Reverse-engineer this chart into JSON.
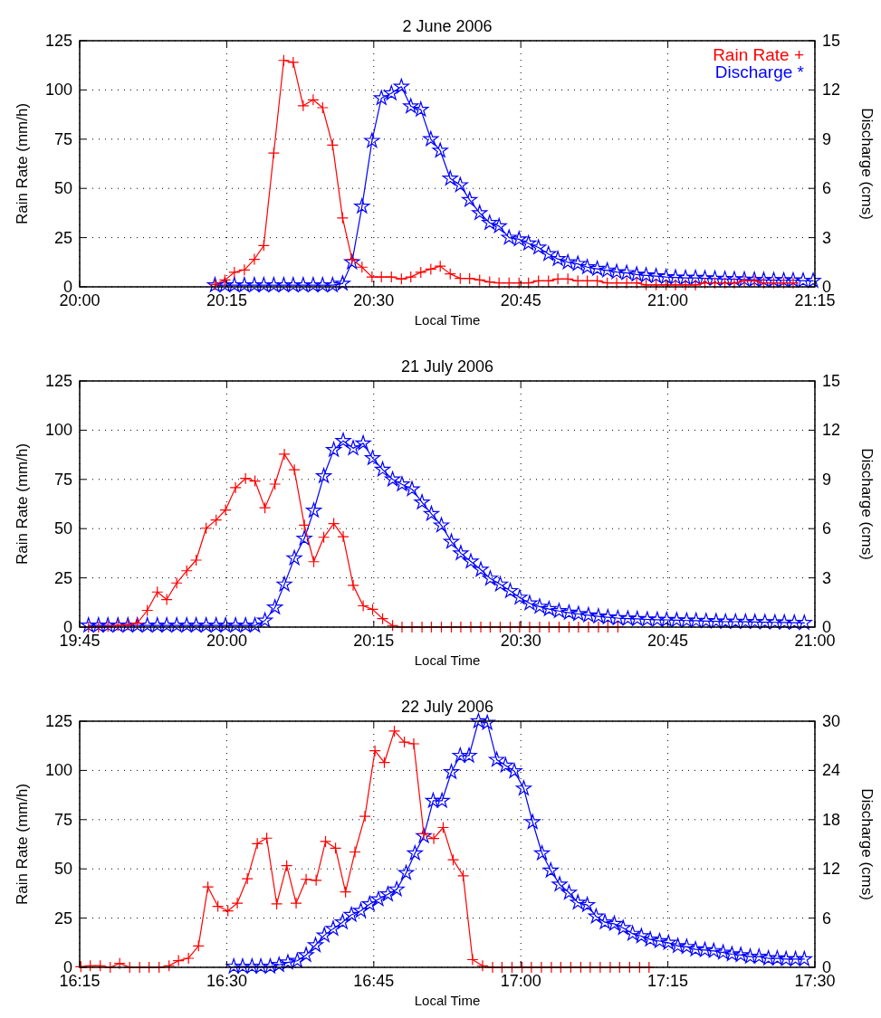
{
  "chart_data": [
    {
      "type": "line",
      "title": "2 June 2006",
      "xlabel": "Local Time",
      "ylabel": "Rain Rate (mm/h)",
      "y2label": "Discharge (cms)",
      "xlim": [
        20,
        21.25
      ],
      "xticks": [
        {
          "value": 20,
          "label": "20:00"
        },
        {
          "value": 20.25,
          "label": "20:15"
        },
        {
          "value": 20.5,
          "label": "20:30"
        },
        {
          "value": 20.75,
          "label": "20:45"
        },
        {
          "value": 21,
          "label": "21:00"
        },
        {
          "value": 21.25,
          "label": "21:15"
        }
      ],
      "ylim": [
        0,
        125
      ],
      "yticks": [
        0,
        25,
        50,
        75,
        100,
        125
      ],
      "y2lim": [
        0,
        15
      ],
      "y2ticks": [
        0,
        3,
        6,
        9,
        12,
        15
      ],
      "grid": true,
      "legend": "top right",
      "line_style": "solid",
      "series": [
        {
          "name": "Rain Rate +",
          "color": "#ff0000",
          "marker": "cross",
          "x": [
            20.23,
            20.247,
            20.263,
            20.28,
            20.297,
            20.313,
            20.33,
            20.347,
            20.363,
            20.38,
            20.397,
            20.413,
            20.43,
            20.447,
            20.463,
            20.48,
            20.497,
            20.513,
            20.53,
            20.547,
            20.563,
            20.58,
            20.597,
            20.613,
            20.63,
            20.647,
            20.663,
            20.68,
            20.697,
            20.713,
            20.73,
            20.747,
            20.763,
            20.78,
            20.797,
            20.813,
            20.83,
            20.847,
            20.863,
            20.88,
            20.897,
            20.913,
            20.93,
            20.947,
            20.963,
            20.98,
            20.997,
            21.013,
            21.03,
            21.047,
            21.063,
            21.08,
            21.097,
            21.113,
            21.13,
            21.147,
            21.163,
            21.18,
            21.197,
            21.213
          ],
          "values": [
            1.2,
            3.5,
            7.4,
            8.6,
            14,
            21,
            68,
            115,
            114,
            92,
            95,
            91,
            72,
            35,
            14,
            10,
            5,
            5,
            5,
            4,
            5,
            7.4,
            9,
            10.5,
            6.6,
            4.3,
            4.3,
            3.5,
            2.5,
            2,
            2,
            2,
            2,
            3,
            3,
            4,
            4,
            3,
            3,
            3,
            2,
            2,
            2,
            2,
            1,
            1,
            1,
            1,
            1,
            1,
            2,
            2,
            2,
            2,
            3,
            3,
            2,
            2,
            2,
            2
          ]
        },
        {
          "name": "Discharge *",
          "color": "#0000ff",
          "marker": "star",
          "axis": "y2",
          "x": [
            20.23,
            20.247,
            20.263,
            20.28,
            20.297,
            20.313,
            20.33,
            20.347,
            20.363,
            20.38,
            20.397,
            20.413,
            20.43,
            20.447,
            20.463,
            20.48,
            20.497,
            20.513,
            20.53,
            20.547,
            20.563,
            20.58,
            20.597,
            20.613,
            20.63,
            20.647,
            20.663,
            20.68,
            20.697,
            20.713,
            20.73,
            20.747,
            20.763,
            20.78,
            20.797,
            20.813,
            20.83,
            20.847,
            20.863,
            20.88,
            20.897,
            20.913,
            20.93,
            20.947,
            20.963,
            20.98,
            20.997,
            21.013,
            21.03,
            21.047,
            21.063,
            21.08,
            21.097,
            21.113,
            21.13,
            21.147,
            21.163,
            21.18,
            21.197,
            21.213,
            21.23,
            21.247
          ],
          "values": [
            0.1,
            0.1,
            0.1,
            0.1,
            0.1,
            0.1,
            0.1,
            0.1,
            0.1,
            0.1,
            0.1,
            0.1,
            0.1,
            0.2,
            1.5,
            4.9,
            8.9,
            11.5,
            11.8,
            12.2,
            11.0,
            10.8,
            9.0,
            8.3,
            6.6,
            6.2,
            5.3,
            4.5,
            3.9,
            3.7,
            3.0,
            2.9,
            2.65,
            2.4,
            2.0,
            1.7,
            1.5,
            1.4,
            1.2,
            1.1,
            1.0,
            0.9,
            0.85,
            0.75,
            0.7,
            0.65,
            0.6,
            0.57,
            0.55,
            0.55,
            0.52,
            0.5,
            0.48,
            0.47,
            0.45,
            0.43,
            0.42,
            0.41,
            0.4,
            0.4,
            0.38,
            0.37
          ]
        }
      ]
    },
    {
      "type": "line",
      "title": "21 July 2006",
      "xlabel": "Local Time",
      "ylabel": "Rain Rate (mm/h)",
      "y2label": "Discharge (cms)",
      "xlim": [
        19.75,
        21
      ],
      "xticks": [
        {
          "value": 19.75,
          "label": "19:45"
        },
        {
          "value": 20,
          "label": "20:00"
        },
        {
          "value": 20.25,
          "label": "20:15"
        },
        {
          "value": 20.5,
          "label": "20:30"
        },
        {
          "value": 20.75,
          "label": "20:45"
        },
        {
          "value": 21,
          "label": "21:00"
        }
      ],
      "ylim": [
        0,
        125
      ],
      "yticks": [
        0,
        25,
        50,
        75,
        100,
        125
      ],
      "y2lim": [
        0,
        15
      ],
      "y2ticks": [
        0,
        3,
        6,
        9,
        12,
        15
      ],
      "grid": true,
      "line_style": "solid",
      "series": [
        {
          "color": "#ff0000",
          "marker": "cross",
          "x": [
            19.765,
            19.782,
            19.798,
            19.815,
            19.832,
            19.848,
            19.865,
            19.882,
            19.898,
            19.915,
            19.932,
            19.948,
            19.965,
            19.982,
            19.998,
            20.015,
            20.032,
            20.048,
            20.065,
            20.082,
            20.098,
            20.115,
            20.132,
            20.148,
            20.165,
            20.182,
            20.198,
            20.215,
            20.232,
            20.248,
            20.265,
            20.282,
            20.298,
            20.315,
            20.332,
            20.348,
            20.365,
            20.382,
            20.398,
            20.415,
            20.432,
            20.448,
            20.465,
            20.482,
            20.498,
            20.515,
            20.532,
            20.548,
            20.565,
            20.582,
            20.598,
            20.615,
            20.632,
            20.648,
            20.665
          ],
          "values": [
            0,
            0,
            0.3,
            0.8,
            1.2,
            2,
            8.5,
            17.8,
            14,
            22.4,
            28.6,
            34,
            50.2,
            54.4,
            59.5,
            70.8,
            75.5,
            74.2,
            60.6,
            72.6,
            87.8,
            79.9,
            51.8,
            33.2,
            45.6,
            52.6,
            45.9,
            21.2,
            10.8,
            9,
            4.3,
            0.8,
            0,
            0,
            0,
            0,
            0,
            0,
            0,
            0,
            0,
            0,
            0,
            0,
            0,
            0,
            0,
            0,
            0,
            0,
            0,
            0,
            0,
            0,
            0
          ]
        },
        {
          "color": "#0000ff",
          "marker": "star",
          "axis": "y2",
          "x": [
            19.765,
            19.782,
            19.798,
            19.815,
            19.832,
            19.848,
            19.865,
            19.882,
            19.898,
            19.915,
            19.932,
            19.948,
            19.965,
            19.982,
            19.998,
            20.015,
            20.032,
            20.048,
            20.065,
            20.082,
            20.098,
            20.115,
            20.132,
            20.148,
            20.165,
            20.182,
            20.198,
            20.215,
            20.232,
            20.248,
            20.265,
            20.282,
            20.298,
            20.315,
            20.332,
            20.348,
            20.365,
            20.382,
            20.398,
            20.415,
            20.432,
            20.448,
            20.465,
            20.482,
            20.498,
            20.515,
            20.532,
            20.548,
            20.565,
            20.582,
            20.598,
            20.615,
            20.632,
            20.648,
            20.665,
            20.682,
            20.698,
            20.715,
            20.732,
            20.748,
            20.765,
            20.782,
            20.798,
            20.815,
            20.832,
            20.848,
            20.865,
            20.882,
            20.898,
            20.915,
            20.932,
            20.948,
            20.965,
            20.982
          ],
          "values": [
            0.1,
            0.1,
            0.1,
            0.1,
            0.1,
            0.1,
            0.1,
            0.1,
            0.1,
            0.1,
            0.1,
            0.1,
            0.1,
            0.1,
            0.1,
            0.1,
            0.1,
            0.1,
            0.4,
            1.2,
            2.6,
            4.2,
            5.4,
            7.1,
            9.2,
            10.8,
            11.35,
            10.9,
            11.2,
            10.3,
            9.6,
            9.0,
            8.7,
            8.4,
            7.6,
            6.9,
            6.2,
            5.2,
            4.5,
            4.0,
            3.5,
            2.96,
            2.6,
            2.2,
            1.8,
            1.45,
            1.25,
            1.1,
            0.98,
            0.88,
            0.8,
            0.72,
            0.65,
            0.6,
            0.55,
            0.52,
            0.5,
            0.47,
            0.45,
            0.44,
            0.42,
            0.4,
            0.39,
            0.37,
            0.35,
            0.33,
            0.33,
            0.32,
            0.31,
            0.3,
            0.29,
            0.28,
            0.27,
            0.26
          ]
        }
      ]
    },
    {
      "type": "line",
      "title": "22 July 2006",
      "xlabel": "Local Time",
      "ylabel": "Rain Rate (mm/h)",
      "y2label": "Discharge (cms)",
      "xlim": [
        16.25,
        17.5
      ],
      "xticks": [
        {
          "value": 16.25,
          "label": "16:15"
        },
        {
          "value": 16.5,
          "label": "16:30"
        },
        {
          "value": 16.75,
          "label": "16:45"
        },
        {
          "value": 17,
          "label": "17:00"
        },
        {
          "value": 17.25,
          "label": "17:15"
        },
        {
          "value": 17.5,
          "label": "17:30"
        }
      ],
      "ylim": [
        0,
        125
      ],
      "yticks": [
        0,
        25,
        50,
        75,
        100,
        125
      ],
      "y2lim": [
        0,
        30
      ],
      "y2ticks": [
        0,
        6,
        12,
        18,
        24,
        30
      ],
      "grid": true,
      "line_style": "solid",
      "series": [
        {
          "color": "#ff0000",
          "marker": "cross",
          "x": [
            16.252,
            16.268,
            16.285,
            16.302,
            16.318,
            16.335,
            16.352,
            16.368,
            16.385,
            16.402,
            16.418,
            16.435,
            16.452,
            16.468,
            16.485,
            16.502,
            16.518,
            16.535,
            16.552,
            16.568,
            16.585,
            16.602,
            16.618,
            16.635,
            16.652,
            16.668,
            16.685,
            16.702,
            16.718,
            16.735,
            16.752,
            16.768,
            16.785,
            16.802,
            16.818,
            16.835,
            16.852,
            16.868,
            16.885,
            16.902,
            16.918,
            16.935,
            16.952,
            16.968,
            16.985,
            17.002,
            17.018,
            17.035,
            17.052,
            17.068,
            17.085,
            17.102,
            17.118,
            17.135,
            17.152,
            17.168,
            17.185,
            17.202,
            17.218
          ],
          "values": [
            0.3,
            0.8,
            0.8,
            0,
            2,
            0,
            0,
            0,
            0,
            0.8,
            3.4,
            4.6,
            10.9,
            40.8,
            31,
            28.7,
            32.6,
            45,
            62.8,
            65.6,
            32.2,
            51.6,
            32.6,
            44.7,
            44.2,
            63.9,
            60.5,
            38.3,
            58.6,
            76.7,
            110,
            104,
            120,
            114.4,
            113.5,
            67.8,
            65.4,
            71,
            54.6,
            46.5,
            3.9,
            0.8,
            0,
            0,
            0,
            0,
            0,
            0,
            0,
            0,
            0,
            0,
            0,
            0,
            0,
            0,
            0,
            0,
            0
          ]
        },
        {
          "color": "#0000ff",
          "marker": "star",
          "axis": "y2",
          "x": [
            16.512,
            16.527,
            16.543,
            16.558,
            16.574,
            16.589,
            16.604,
            16.62,
            16.635,
            16.651,
            16.666,
            16.681,
            16.697,
            16.712,
            16.728,
            16.743,
            16.758,
            16.774,
            16.789,
            16.805,
            16.82,
            16.835,
            16.851,
            16.866,
            16.882,
            16.897,
            16.912,
            16.928,
            16.943,
            16.959,
            16.974,
            16.989,
            17.005,
            17.02,
            17.036,
            17.051,
            17.066,
            17.082,
            17.097,
            17.113,
            17.128,
            17.143,
            17.159,
            17.174,
            17.19,
            17.205,
            17.22,
            17.236,
            17.251,
            17.267,
            17.282,
            17.297,
            17.313,
            17.328,
            17.344,
            17.359,
            17.374,
            17.39,
            17.405,
            17.421,
            17.436,
            17.451,
            17.467,
            17.482
          ],
          "values": [
            0.1,
            0.1,
            0.1,
            0.1,
            0.1,
            0.3,
            0.6,
            0.8,
            1.5,
            2.7,
            3.9,
            4.7,
            5.5,
            6.4,
            6.9,
            7.7,
            8.3,
            8.9,
            9.5,
            11.5,
            13.9,
            16.0,
            20.3,
            20.3,
            23.8,
            25.8,
            25.8,
            30,
            29.8,
            25.3,
            24.6,
            23.9,
            21.8,
            17.7,
            13.9,
            11.8,
            10.1,
            9.1,
            7.9,
            7.6,
            6.2,
            5.5,
            5.3,
            4.8,
            4.1,
            3.8,
            3.4,
            3.2,
            3.0,
            2.6,
            2.5,
            2.2,
            2.1,
            2.0,
            1.8,
            1.6,
            1.5,
            1.3,
            1.3,
            1.1,
            1.1,
            1.0,
            1.0,
            1.0
          ]
        }
      ]
    }
  ]
}
